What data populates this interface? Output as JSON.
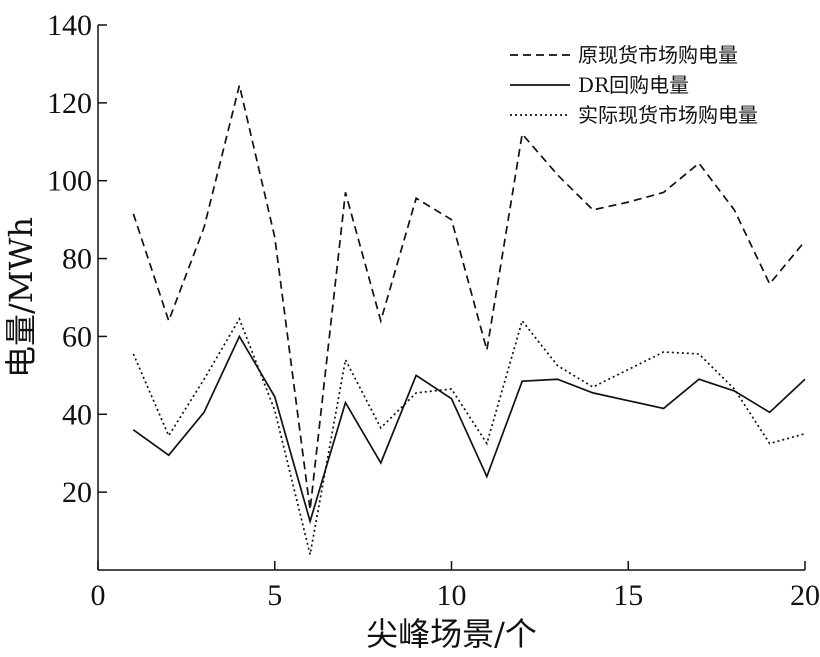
{
  "chart_data": {
    "type": "line",
    "title": "",
    "xlabel": "尖峰场景/个",
    "ylabel": "电量/MWh",
    "xlim": [
      0,
      20
    ],
    "ylim": [
      0,
      140
    ],
    "xticks": [
      "0",
      "5",
      "10",
      "15",
      "20"
    ],
    "yticks": [
      "20",
      "40",
      "60",
      "80",
      "100",
      "120",
      "140"
    ],
    "grid": false,
    "legend_position": "top-right",
    "x": [
      1,
      2,
      3,
      4,
      5,
      6,
      7,
      8,
      9,
      10,
      11,
      12,
      13,
      14,
      15,
      16,
      17,
      18,
      19,
      20
    ],
    "series": [
      {
        "name": "原现货市场购电量",
        "style": "dashed",
        "color": "#111111",
        "values": [
          91.5,
          64,
          88,
          124.5,
          85.5,
          15.5,
          97,
          64,
          95.5,
          90,
          56.5,
          112,
          101.5,
          92.5,
          94.5,
          97,
          104.5,
          92.5,
          73.5,
          84.5
        ]
      },
      {
        "name": "DR回购电量",
        "style": "solid",
        "color": "#111111",
        "values": [
          36,
          29.5,
          40.5,
          60,
          44.5,
          12.5,
          43,
          27.5,
          50,
          44,
          24,
          48.5,
          49,
          45.5,
          43.5,
          41.5,
          49,
          46,
          40.5,
          49
        ]
      },
      {
        "name": "实际现货市场购电量",
        "style": "dotted",
        "color": "#111111",
        "values": [
          55.5,
          34.5,
          49,
          64.5,
          41,
          4,
          54,
          36.5,
          45.5,
          46.5,
          32.5,
          64,
          52.5,
          47,
          51.5,
          56,
          55.5,
          46.5,
          32.5,
          35
        ]
      }
    ]
  }
}
